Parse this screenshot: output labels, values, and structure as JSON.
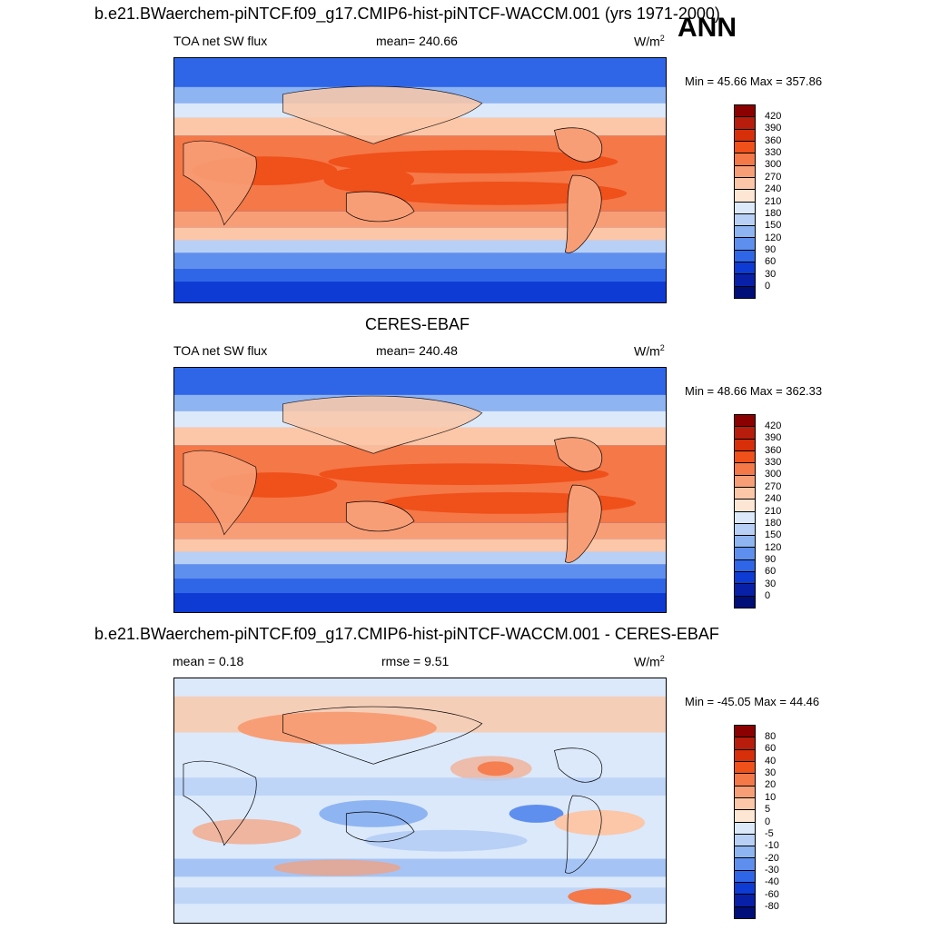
{
  "header": {
    "main_title": "b.e21.BWaerchem-piNTCF.f09_g17.CMIP6-hist-piNTCF-WACCM.001 (yrs 1971-2000)",
    "season": "ANN"
  },
  "panels": [
    {
      "id": "model",
      "title": "",
      "left_label": "TOA net SW flux",
      "center_label": "mean= 240.66",
      "units": "W/m",
      "units_sup": "2",
      "minmax": "Min =  45.66 Max = 357.86",
      "levels": [
        "420",
        "390",
        "360",
        "330",
        "300",
        "270",
        "240",
        "210",
        "180",
        "150",
        "120",
        "90",
        "60",
        "30",
        "0"
      ],
      "colors": [
        "#8b0000",
        "#b71c0c",
        "#d62f0a",
        "#f0501a",
        "#f47848",
        "#f89e76",
        "#fbc7a8",
        "#fde7d4",
        "#dbe9fb",
        "#b8d0f6",
        "#8eb4f2",
        "#5f8fee",
        "#2f66e8",
        "#0e3bd3",
        "#0820a8",
        "#000e7a"
      ]
    },
    {
      "id": "obs",
      "title": "CERES-EBAF",
      "left_label": "TOA net SW flux",
      "center_label": "mean= 240.48",
      "units": "W/m",
      "units_sup": "2",
      "minmax": "Min =  48.66 Max = 362.33",
      "levels": [
        "420",
        "390",
        "360",
        "330",
        "300",
        "270",
        "240",
        "210",
        "180",
        "150",
        "120",
        "90",
        "60",
        "30",
        "0"
      ],
      "colors": [
        "#8b0000",
        "#b71c0c",
        "#d62f0a",
        "#f0501a",
        "#f47848",
        "#f89e76",
        "#fbc7a8",
        "#fde7d4",
        "#dbe9fb",
        "#b8d0f6",
        "#8eb4f2",
        "#5f8fee",
        "#2f66e8",
        "#0e3bd3",
        "#0820a8",
        "#000e7a"
      ]
    },
    {
      "id": "diff",
      "title": "b.e21.BWaerchem-piNTCF.f09_g17.CMIP6-hist-piNTCF-WACCM.001 - CERES-EBAF",
      "left_label": "mean =   0.18",
      "center_label": "rmse =   9.51",
      "units": "W/m",
      "units_sup": "2",
      "minmax": "Min = -45.05 Max =  44.46",
      "levels": [
        "80",
        "60",
        "40",
        "30",
        "20",
        "10",
        "5",
        "0",
        "-5",
        "-10",
        "-20",
        "-30",
        "-40",
        "-60",
        "-80"
      ],
      "colors": [
        "#8b0000",
        "#b71c0c",
        "#d62f0a",
        "#f0501a",
        "#f47848",
        "#f89e76",
        "#fbc7a8",
        "#fde7d4",
        "#dbe9fb",
        "#b8d0f6",
        "#8eb4f2",
        "#5f8fee",
        "#2f66e8",
        "#0e3bd3",
        "#0820a8",
        "#000e7a"
      ]
    }
  ]
}
